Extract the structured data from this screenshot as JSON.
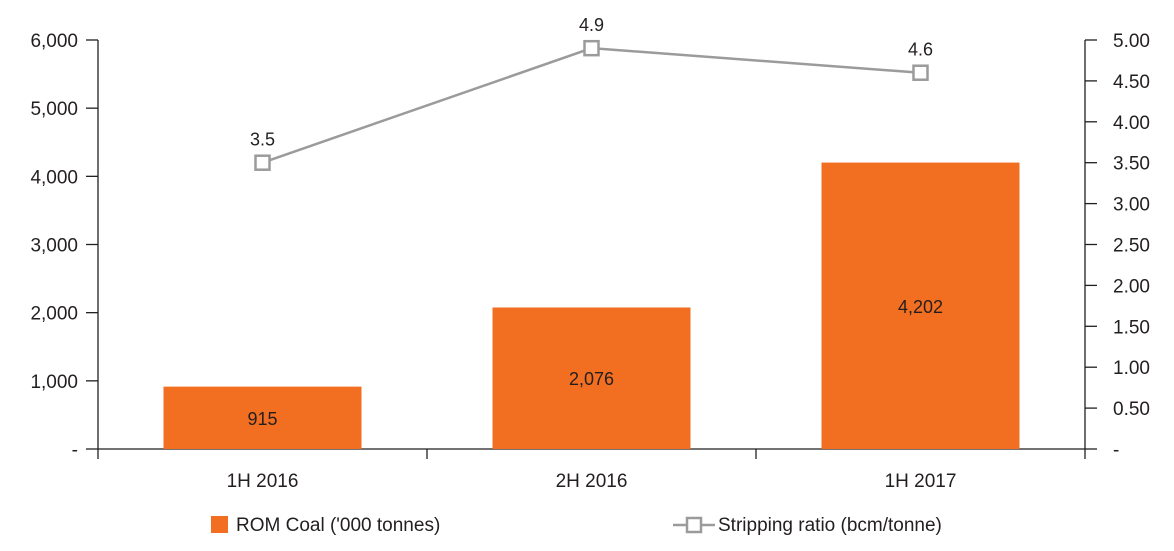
{
  "chart_data": {
    "type": "bar",
    "categories": [
      "1H 2016",
      "2H 2016",
      "1H 2017"
    ],
    "series": [
      {
        "name": "ROM Coal ('000 tonnes)",
        "type": "bar",
        "axis": "left",
        "values": [
          915,
          2076,
          4202
        ],
        "labels": [
          "915",
          "2,076",
          "4,202"
        ],
        "color": "#f26f21"
      },
      {
        "name": "Stripping ratio (bcm/tonne)",
        "type": "line",
        "axis": "right",
        "values": [
          3.5,
          4.9,
          4.6
        ],
        "labels": [
          "3.5",
          "4.9",
          "4.6"
        ],
        "color": "#9b9b9b"
      }
    ],
    "y_left": {
      "range": [
        0,
        6000
      ],
      "ticks": [
        0,
        1000,
        2000,
        3000,
        4000,
        5000,
        6000
      ],
      "tick_labels": [
        "-",
        "1,000",
        "2,000",
        "3,000",
        "4,000",
        "5,000",
        "6,000"
      ]
    },
    "y_right": {
      "range": [
        0,
        5
      ],
      "ticks": [
        0,
        0.5,
        1,
        1.5,
        2,
        2.5,
        3,
        3.5,
        4,
        4.5,
        5
      ],
      "tick_labels": [
        "-",
        "0.50",
        "1.00",
        "1.50",
        "2.00",
        "2.50",
        "3.00",
        "3.50",
        "4.00",
        "4.50",
        "5.00"
      ]
    },
    "grid": false,
    "legend_position": "bottom"
  }
}
